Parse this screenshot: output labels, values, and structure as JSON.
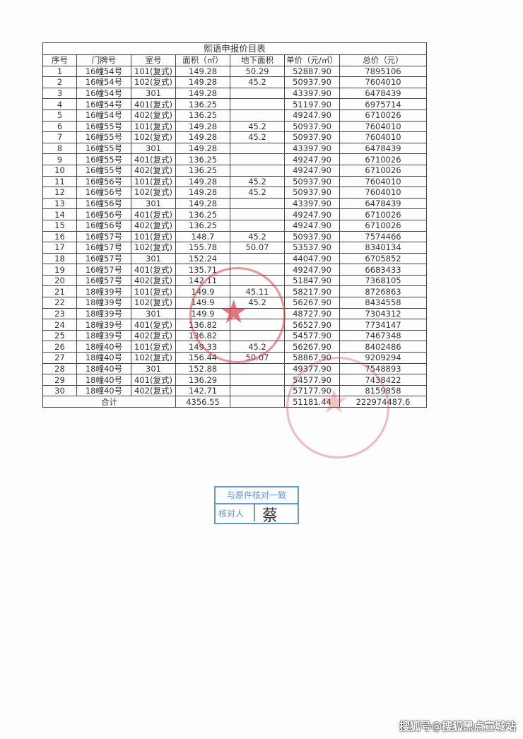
{
  "document": {
    "title": "熙语申报价目表",
    "headers": [
      "序号",
      "门牌号",
      "室号",
      "面积（㎡）",
      "地下面积",
      "单价（元/㎡）",
      "总价（元）"
    ],
    "rows": [
      [
        "1",
        "16幢54号",
        "101(复式)",
        "149.28",
        "50.29",
        "52887.90",
        "7895106"
      ],
      [
        "2",
        "16幢54号",
        "102(复式)",
        "149.28",
        "45.2",
        "50937.90",
        "7604010"
      ],
      [
        "3",
        "16幢54号",
        "301",
        "149.28",
        "",
        "43397.90",
        "6478439"
      ],
      [
        "4",
        "16幢54号",
        "401(复式)",
        "136.25",
        "",
        "51197.90",
        "6975714"
      ],
      [
        "5",
        "16幢54号",
        "402(复式)",
        "136.25",
        "",
        "49247.90",
        "6710026"
      ],
      [
        "6",
        "16幢55号",
        "101(复式)",
        "149.28",
        "45.2",
        "50937.90",
        "7604010"
      ],
      [
        "7",
        "16幢55号",
        "102(复式)",
        "149.28",
        "45.2",
        "50937.90",
        "7604010"
      ],
      [
        "8",
        "16幢55号",
        "301",
        "149.28",
        "",
        "43397.90",
        "6478439"
      ],
      [
        "9",
        "16幢55号",
        "401(复式)",
        "136.25",
        "",
        "49247.90",
        "6710026"
      ],
      [
        "10",
        "16幢55号",
        "402(复式)",
        "136.25",
        "",
        "49247.90",
        "6710026"
      ],
      [
        "11",
        "16幢56号",
        "101(复式)",
        "149.28",
        "45.2",
        "50937.90",
        "7604010"
      ],
      [
        "12",
        "16幢56号",
        "102(复式)",
        "149.28",
        "45.2",
        "50937.90",
        "7604010"
      ],
      [
        "13",
        "16幢56号",
        "301",
        "149.28",
        "",
        "43397.90",
        "6478439"
      ],
      [
        "14",
        "16幢56号",
        "401(复式)",
        "136.25",
        "",
        "49247.90",
        "6710026"
      ],
      [
        "15",
        "16幢56号",
        "402(复式)",
        "136.25",
        "",
        "49247.90",
        "6710026"
      ],
      [
        "16",
        "16幢57号",
        "101(复式)",
        "148.7",
        "45.2",
        "50937.90",
        "7574466"
      ],
      [
        "17",
        "16幢57号",
        "102(复式)",
        "155.78",
        "50.07",
        "53537.90",
        "8340134"
      ],
      [
        "18",
        "16幢57号",
        "301",
        "152.24",
        "",
        "44047.90",
        "6705852"
      ],
      [
        "19",
        "16幢57号",
        "401(复式)",
        "135.71",
        "",
        "49247.90",
        "6683433"
      ],
      [
        "20",
        "16幢57号",
        "402(复式)",
        "142.11",
        "",
        "51847.90",
        "7368105"
      ],
      [
        "21",
        "18幢39号",
        "101(复式)",
        "149.9",
        "45.11",
        "58217.90",
        "8726863"
      ],
      [
        "22",
        "18幢39号",
        "102(复式)",
        "149.9",
        "45.2",
        "56267.90",
        "8434558"
      ],
      [
        "23",
        "18幢39号",
        "301",
        "149.9",
        "",
        "48727.90",
        "7304312"
      ],
      [
        "24",
        "18幢39号",
        "401(复式)",
        "136.82",
        "",
        "56527.90",
        "7734147"
      ],
      [
        "25",
        "18幢39号",
        "402(复式)",
        "136.82",
        "",
        "54577.90",
        "7467348"
      ],
      [
        "26",
        "18幢40号",
        "101(复式)",
        "149.33",
        "45.2",
        "56267.90",
        "8402486"
      ],
      [
        "27",
        "18幢40号",
        "102(复式)",
        "156.44",
        "50.07",
        "58867.90",
        "9209294"
      ],
      [
        "28",
        "18幢40号",
        "301",
        "152.88",
        "",
        "49377.90",
        "7548893"
      ],
      [
        "29",
        "18幢40号",
        "401(复式)",
        "136.29",
        "",
        "54577.90",
        "7438422"
      ],
      [
        "30",
        "18幢40号",
        "402(复式)",
        "142.71",
        "",
        "57177.90",
        "8159858"
      ]
    ],
    "total": {
      "label": "合计",
      "area": "4356.55",
      "unit_price": "51181.44",
      "total_price": "222974487.6"
    }
  },
  "check_stamp": {
    "line1": "与原件核对一致",
    "line2": "核对人",
    "signature": "蔡"
  },
  "watermark": "搜狐号@搜狐黑点宣城站",
  "colors": {
    "seal": "#dc3c46",
    "check_stamp": "#3c82c8"
  }
}
